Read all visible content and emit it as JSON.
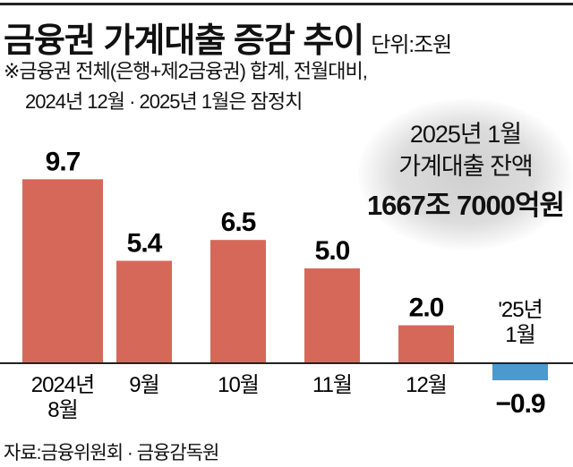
{
  "title": "금융권 가계대출 증감 추이",
  "unit": "단위:조원",
  "note_line1": "※금융권 전체(은행+제2금융권) 합계, 전월대비,",
  "note_line2": "2024년 12월 · 2025년 1월은 잠정치",
  "callout": {
    "line1": "2025년 1월",
    "line2": "가계대출 잔액",
    "line3": "1667조 7000억원"
  },
  "source": "자료:금융위원회 · 금융감독원",
  "colors": {
    "positive": "#d6685a",
    "negative": "#4a9ad0",
    "axis": "#222222"
  },
  "chart_data": {
    "type": "bar",
    "categories": [
      [
        "2024년",
        "8월"
      ],
      [
        "9월"
      ],
      [
        "10월"
      ],
      [
        "11월"
      ],
      [
        "12월"
      ],
      [
        "'25년",
        "1월"
      ]
    ],
    "values": [
      9.7,
      5.4,
      6.5,
      5.0,
      2.0,
      -0.9
    ],
    "value_labels": [
      "9.7",
      "5.4",
      "6.5",
      "5.0",
      "2.0",
      "−0.9"
    ],
    "xlabel": "",
    "ylabel": "",
    "grid": false
  }
}
